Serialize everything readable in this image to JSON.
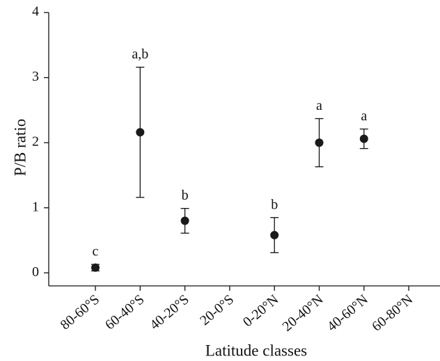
{
  "chart_data": {
    "type": "errorbar",
    "x_label": "Latitude classes",
    "y_label": "P/B ratio",
    "categories": [
      "80-60°S",
      "60-40°S",
      "40-20°S",
      "20-0°S",
      "0-20°N",
      "20-40°N",
      "40-60°N",
      "60-80°N"
    ],
    "values": [
      0.08,
      2.16,
      0.8,
      null,
      0.58,
      2.0,
      2.06,
      null
    ],
    "errors": [
      0.05,
      1.0,
      0.19,
      null,
      0.27,
      0.37,
      0.15,
      null
    ],
    "annotations": [
      "c",
      "a,b",
      "b",
      null,
      "b",
      "a",
      "a",
      null
    ],
    "color": "#1a1a1a",
    "ylim": [
      -0.2,
      4
    ],
    "yticks": [
      0,
      1,
      2,
      3,
      4
    ]
  }
}
